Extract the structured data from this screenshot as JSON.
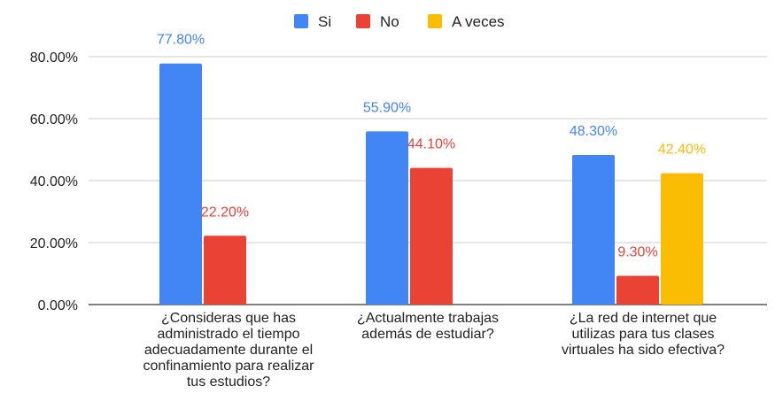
{
  "chart_data": {
    "type": "bar",
    "categories": [
      [
        "¿Consideras que has",
        "administrado el tiempo",
        "adecuadamente durante el",
        "confinamiento para realizar",
        "tus estudios?"
      ],
      [
        "¿Actualmente trabajas",
        "además de estudiar?"
      ],
      [
        "¿La red de internet que",
        "utilizas para tus clases",
        "virtuales ha sido efectiva?"
      ]
    ],
    "series": [
      {
        "name": "Si",
        "color": "#4285f4",
        "values": [
          77.8,
          55.9,
          48.3
        ],
        "labels": [
          "77.80%",
          "55.90%",
          "48.30%"
        ]
      },
      {
        "name": "No",
        "color": "#ea4335",
        "values": [
          22.2,
          44.1,
          9.3
        ],
        "labels": [
          "22.20%",
          "44.10%",
          "9.30%"
        ]
      },
      {
        "name": "A veces",
        "color": "#fbbc04",
        "values": [
          null,
          null,
          42.4
        ],
        "labels": [
          null,
          null,
          "42.40%"
        ]
      }
    ],
    "ylim": [
      0,
      80
    ],
    "yticks": [
      0,
      20,
      40,
      60,
      80
    ],
    "ytick_labels": [
      "0.00%",
      "20.00%",
      "40.00%",
      "60.00%",
      "80.00%"
    ],
    "legend_position": "top",
    "grid": true
  }
}
